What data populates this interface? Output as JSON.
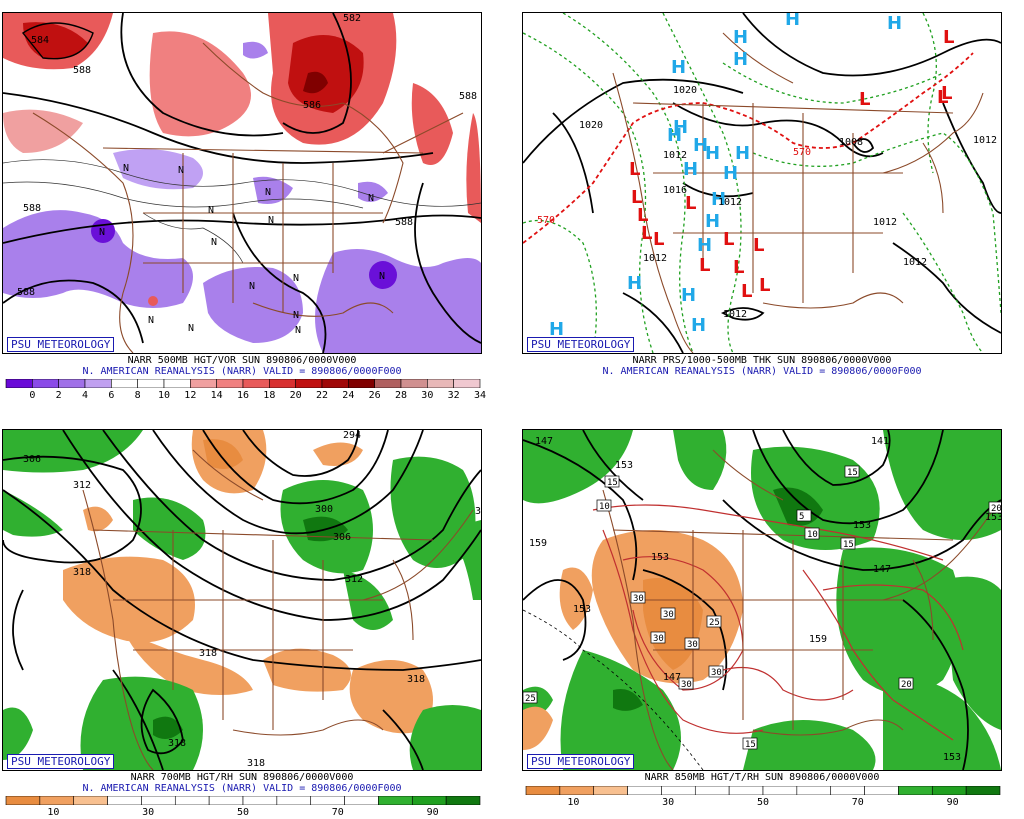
{
  "panels": [
    {
      "id": "vor",
      "badge": "PSU METEOROLOGY",
      "caption_line1": "NARR 500MB HGT/VOR SUN 890806/0000V000",
      "caption_line2": "N. AMERICAN REANALYSIS (NARR) VALID = 890806/0000F000",
      "colorbar": {
        "colors": [
          "#6a0ad8",
          "#8a4ae8",
          "#a070e8",
          "#c0a0f0",
          "#ffffff",
          "#ffffff",
          "#ffffff",
          "#f0a0a0",
          "#f08080",
          "#e85a5a",
          "#d83030",
          "#c01010",
          "#a00808",
          "#800000",
          "#b06060",
          "#d09090",
          "#e8b8b8",
          "#f0c8d0"
        ],
        "tick_labels": [
          "0",
          "2",
          "4",
          "6",
          "8",
          "10",
          "12",
          "14",
          "16",
          "18",
          "20",
          "22",
          "24",
          "26",
          "28",
          "30",
          "32",
          "34"
        ]
      },
      "contour_labels": [
        "584",
        "582",
        "588",
        "588",
        "588",
        "588",
        "588",
        "586"
      ]
    },
    {
      "id": "prs",
      "badge": "PSU METEOROLOGY",
      "caption_line1": "NARR PRS/1000-500MB THK SUN 890806/0000V000",
      "caption_line2": "N. AMERICAN REANALYSIS (NARR) VALID = 890806/0000F000",
      "contour_labels": [
        "1020",
        "1020",
        "1008",
        "1012",
        "1016",
        "1012",
        "1012",
        "1012",
        "1012",
        "1012",
        "570",
        "570",
        "1012"
      ],
      "high_marker": "H",
      "low_marker": "L",
      "high_color": "#20a8e8",
      "low_color": "#e01010"
    },
    {
      "id": "rh700",
      "badge": "PSU METEOROLOGY",
      "caption_line1": "NARR 700MB HGT/RH SUN 890806/0000V000",
      "caption_line2": "N. AMERICAN REANALYSIS (NARR) VALID = 890806/0000F000",
      "colorbar": {
        "colors": [
          "#e88c40",
          "#f0a060",
          "#f8c090",
          "#ffffff",
          "#ffffff",
          "#ffffff",
          "#ffffff",
          "#ffffff",
          "#ffffff",
          "#ffffff",
          "#ffffff",
          "#30b030",
          "#20a020",
          "#107810"
        ],
        "tick_labels": [
          "10",
          "30",
          "50",
          "70",
          "90"
        ]
      },
      "contour_labels": [
        "306",
        "312",
        "300",
        "306",
        "312",
        "318",
        "318",
        "318",
        "318",
        "318",
        "318",
        "294"
      ]
    },
    {
      "id": "t850",
      "badge": "PSU METEOROLOGY",
      "caption_line1": "NARR 850MB HGT/T/RH SUN 890806/0000V000",
      "caption_line2": "",
      "colorbar": {
        "colors": [
          "#e88c40",
          "#f0a060",
          "#f8c090",
          "#ffffff",
          "#ffffff",
          "#ffffff",
          "#ffffff",
          "#ffffff",
          "#ffffff",
          "#ffffff",
          "#ffffff",
          "#30b030",
          "#20a020",
          "#107810"
        ],
        "tick_labels": [
          "10",
          "30",
          "50",
          "70",
          "90"
        ]
      },
      "contour_labels": [
        "147",
        "153",
        "141",
        "153",
        "153",
        "147",
        "147",
        "153",
        "159",
        "153",
        "153",
        "159"
      ],
      "boxed_labels": [
        "15",
        "10",
        "30",
        "30",
        "30",
        "30",
        "30",
        "25",
        "30",
        "20",
        "10",
        "15",
        "5",
        "15",
        "20",
        "25",
        "15"
      ]
    }
  ],
  "colors": {
    "border_brown": "#8b4a2a",
    "contour_black": "#000000",
    "badge_blue": "#1a1ab0",
    "thickness_green": "#20a020",
    "thickness_red": "#e01010",
    "temp_red": "#c03030"
  }
}
